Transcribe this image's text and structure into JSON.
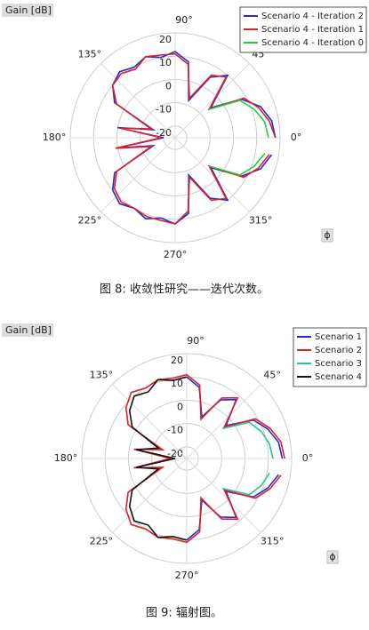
{
  "chart_data": [
    {
      "type": "polar",
      "caption": "图 8: 收敛性研究——迭代次数。",
      "rlabel": "Gain [dB]",
      "angle_symbol": "ϕ",
      "legend": "upper right",
      "rlim": [
        -25,
        20
      ],
      "rticks": [
        20,
        10,
        0,
        -10,
        -20
      ],
      "xticks": [
        {
          "value": 0,
          "label": "0°"
        },
        {
          "value": 45,
          "label": "45°"
        },
        {
          "value": 90,
          "label": "90°"
        },
        {
          "value": 135,
          "label": "135°"
        },
        {
          "value": 180,
          "label": "180°"
        },
        {
          "value": 225,
          "label": "225°"
        },
        {
          "value": 270,
          "label": "270°"
        },
        {
          "value": 315,
          "label": "315°"
        }
      ],
      "x": [
        0,
        10,
        20,
        30,
        40,
        50,
        60,
        70,
        80,
        90,
        100,
        110,
        120,
        130,
        140,
        150,
        160,
        170,
        180,
        190,
        200,
        210,
        220,
        230,
        240,
        250,
        260,
        270,
        280,
        290,
        300,
        310,
        320,
        330,
        340,
        350
      ],
      "series": [
        {
          "name": "Scenario 4 - Iteration 2",
          "color": "#1f2bd6",
          "values": [
            18,
            17,
            14,
            8,
            -5,
            10,
            5,
            -8,
            8,
            12,
            10,
            12,
            10,
            12,
            10,
            5,
            -15,
            0,
            -20,
            0,
            -15,
            5,
            10,
            12,
            10,
            12,
            10,
            12,
            8,
            -8,
            5,
            10,
            -5,
            8,
            14,
            17
          ]
        },
        {
          "name": "Scenario 4 - Iteration 1",
          "color": "#e0202a",
          "values": [
            18,
            16,
            13,
            9,
            -6,
            9,
            6,
            -7,
            7,
            11,
            11,
            12,
            9,
            11,
            10,
            4,
            -14,
            -1,
            -19,
            1,
            -14,
            4,
            9,
            11,
            10,
            11,
            11,
            12,
            7,
            -7,
            6,
            9,
            -6,
            9,
            13,
            16
          ]
        },
        {
          "name": "Scenario 4 - Iteration 0",
          "color": "#22d12e",
          "values": [
            15,
            14,
            11,
            7,
            -6,
            null,
            null,
            null,
            null,
            null,
            null,
            null,
            null,
            null,
            null,
            null,
            null,
            null,
            null,
            null,
            null,
            null,
            null,
            null,
            null,
            null,
            null,
            null,
            null,
            null,
            null,
            null,
            -6,
            7,
            11,
            14
          ]
        }
      ]
    },
    {
      "type": "polar",
      "caption": "图 9: 辐射图。",
      "rlabel": "Gain [dB]",
      "angle_symbol": "ϕ",
      "legend": "upper right",
      "rlim": [
        -25,
        20
      ],
      "rticks": [
        20,
        10,
        0,
        -10,
        -20
      ],
      "xticks": [
        {
          "value": 0,
          "label": "0°"
        },
        {
          "value": 45,
          "label": "45°"
        },
        {
          "value": 90,
          "label": "90°"
        },
        {
          "value": 135,
          "label": "135°"
        },
        {
          "value": 180,
          "label": "180°"
        },
        {
          "value": 225,
          "label": "225°"
        },
        {
          "value": 270,
          "label": "270°"
        },
        {
          "value": 315,
          "label": "315°"
        }
      ],
      "x": [
        0,
        10,
        20,
        30,
        40,
        50,
        60,
        70,
        80,
        90,
        100,
        110,
        120,
        130,
        140,
        150,
        160,
        170,
        180,
        190,
        200,
        210,
        220,
        230,
        240,
        250,
        260,
        270,
        280,
        290,
        300,
        310,
        320,
        330,
        340,
        350
      ],
      "series": [
        {
          "name": "Scenario 1",
          "color": "#1f2bd6",
          "values": [
            16,
            15,
            12,
            8,
            -3,
            8,
            4,
            -6,
            6,
            10,
            null,
            null,
            null,
            null,
            null,
            null,
            null,
            null,
            null,
            null,
            null,
            null,
            null,
            null,
            null,
            null,
            null,
            10,
            6,
            -6,
            4,
            8,
            -3,
            8,
            12,
            15
          ]
        },
        {
          "name": "Scenario 2",
          "color": "#e0202a",
          "values": [
            17,
            16,
            13,
            9,
            -4,
            9,
            5,
            -7,
            7,
            11,
            10,
            11,
            10,
            12,
            9,
            4,
            -14,
            -2,
            -18,
            -2,
            -14,
            4,
            9,
            12,
            10,
            11,
            10,
            11,
            7,
            -7,
            5,
            9,
            -4,
            9,
            13,
            16
          ]
        },
        {
          "name": "Scenario 3",
          "color": "#22c4a0",
          "values": [
            12,
            11,
            9,
            6,
            -5,
            null,
            null,
            null,
            null,
            null,
            null,
            null,
            null,
            null,
            null,
            null,
            null,
            null,
            null,
            null,
            null,
            null,
            null,
            null,
            null,
            null,
            null,
            null,
            null,
            null,
            null,
            null,
            -5,
            6,
            9,
            11
          ]
        },
        {
          "name": "Scenario 4",
          "color": "#111111",
          "values": [
            null,
            null,
            null,
            null,
            null,
            null,
            null,
            null,
            null,
            10,
            9,
            11,
            8,
            10,
            7,
            2,
            -12,
            -3,
            -20,
            -3,
            -12,
            2,
            7,
            10,
            8,
            11,
            9,
            10,
            null,
            null,
            null,
            null,
            null,
            null,
            null,
            null
          ]
        }
      ]
    }
  ]
}
